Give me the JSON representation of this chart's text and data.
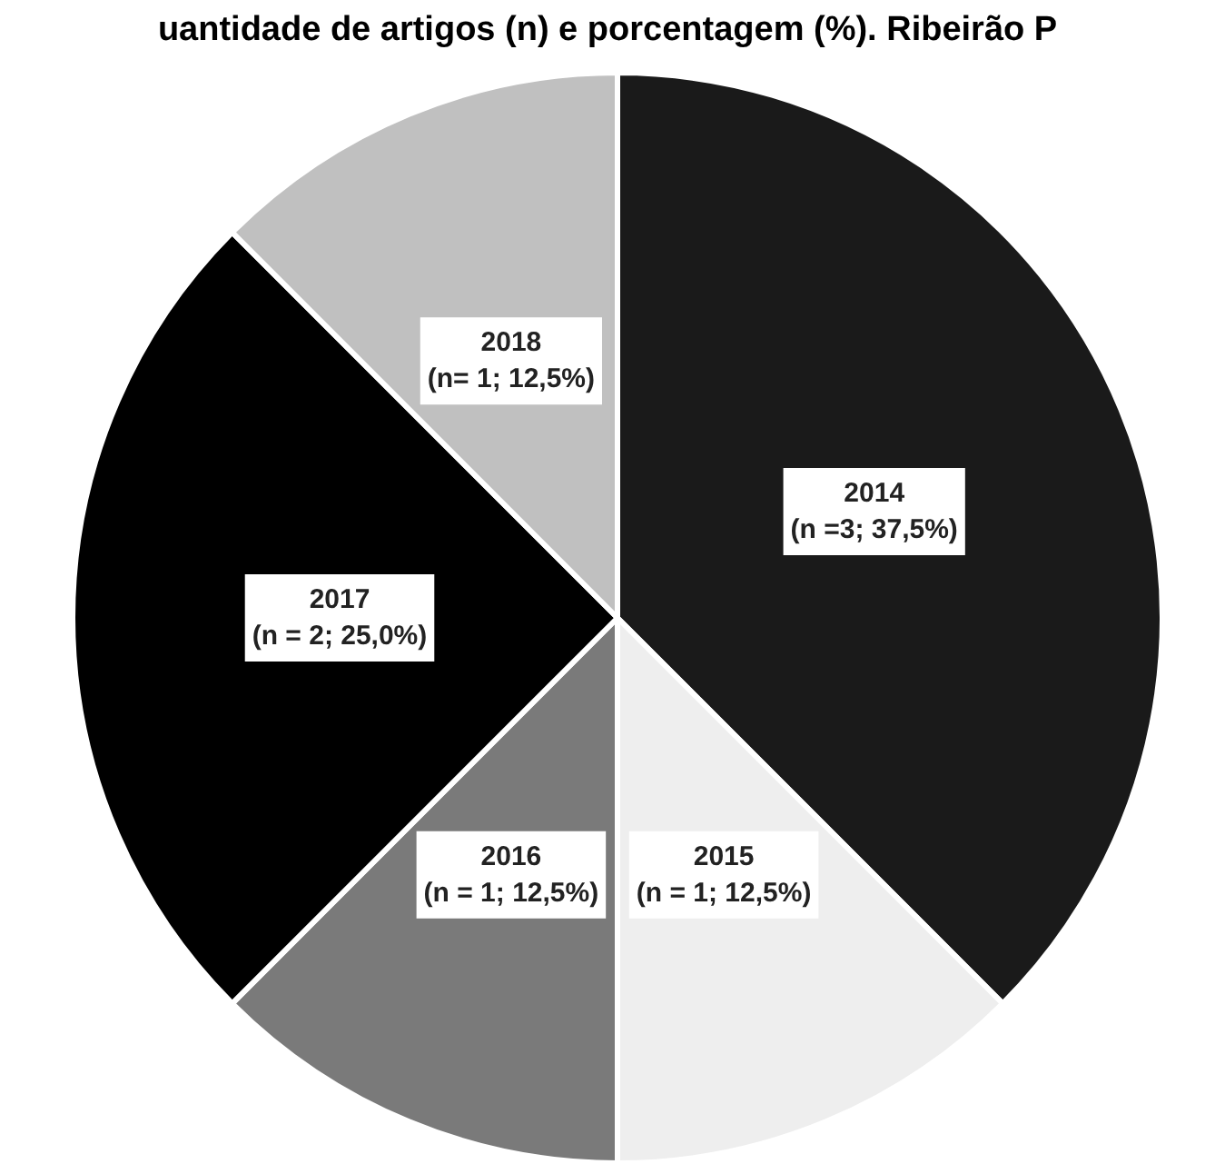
{
  "chart_data": {
    "type": "pie",
    "title": "uantidade de artigos (n) e porcentagem (%). Ribeirão P",
    "categories": [
      "2014",
      "2015",
      "2016",
      "2017",
      "2018"
    ],
    "values": [
      37.5,
      12.5,
      12.5,
      25,
      12.5
    ],
    "value_labels": [
      "(n =3; 37,5%)",
      "(n = 1; 12,5%)",
      "(n = 1; 12,5%)",
      "(n = 2; 25,0%)",
      "(n= 1; 12,5%)"
    ],
    "colors": [
      "#1a1a1a",
      "#eeeeee",
      "#7a7a7a",
      "#000000",
      "#c0c0c0"
    ]
  }
}
